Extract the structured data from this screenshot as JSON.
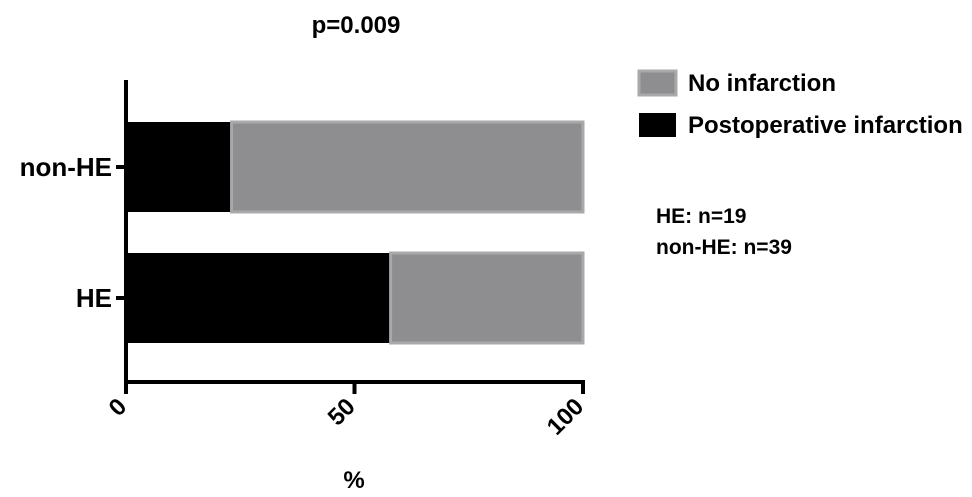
{
  "chart_data": {
    "type": "bar",
    "orientation": "horizontal",
    "stacked": true,
    "title": "p=0.009",
    "xlabel": "%",
    "ylabel": "",
    "xlim": [
      0,
      100
    ],
    "xticks": [
      "0",
      "50",
      "100"
    ],
    "categories": [
      "non-HE",
      "HE"
    ],
    "series": [
      {
        "name": "Postoperative infarction",
        "values": [
          23.1,
          57.9
        ],
        "color": "#000000"
      },
      {
        "name": "No infarction",
        "values": [
          76.9,
          42.1
        ],
        "color": "#8e8e91"
      }
    ],
    "legend": {
      "position": "right",
      "items": [
        {
          "label": "No infarction",
          "color": "#8e8e91",
          "border": "#a9a9ab"
        },
        {
          "label": "Postoperative infarction",
          "color": "#000000"
        }
      ]
    },
    "annotations": [
      "HE: n=19",
      "non-HE: n=39"
    ],
    "grid": false
  }
}
